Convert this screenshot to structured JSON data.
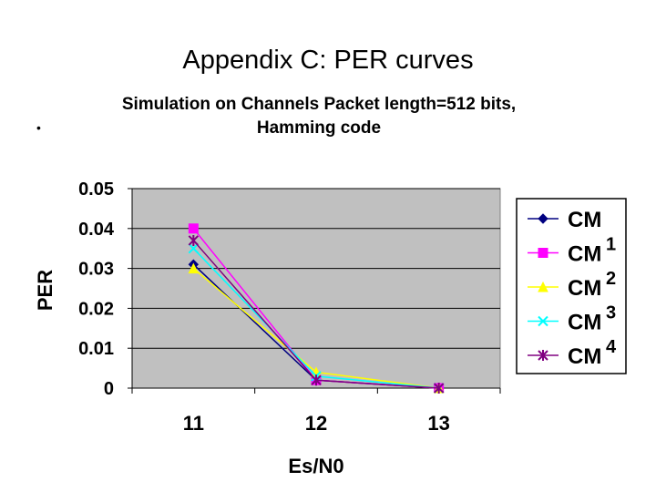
{
  "slide": {
    "title": "Appendix C: PER curves",
    "bullet": "•"
  },
  "colors": {
    "plot_background": "#c0c0c0",
    "gridline": "#000000"
  },
  "chart_data": {
    "type": "line",
    "title": "Simulation on Channels Packet length=512 bits, Hamming code",
    "title_lines": [
      "Simulation on Channels Packet length=512 bits,",
      "Hamming code"
    ],
    "xlabel": "Es/N0",
    "ylabel": "PER",
    "categories": [
      "11",
      "12",
      "13"
    ],
    "yticks": [
      "0",
      "0.01",
      "0.02",
      "0.03",
      "0.04",
      "0.05"
    ],
    "ylim": [
      0,
      0.05
    ],
    "grid": true,
    "legend_position": "right",
    "series": [
      {
        "name": "CM",
        "sup": "",
        "color": "#000080",
        "marker": "diamond",
        "values": [
          0.031,
          0.002,
          0.0
        ]
      },
      {
        "name": "CM",
        "sup": "1",
        "color": "#ff00ff",
        "marker": "square",
        "values": [
          0.04,
          0.002,
          0.0
        ]
      },
      {
        "name": "CM",
        "sup": "2",
        "color": "#ffff00",
        "marker": "triangle",
        "values": [
          0.03,
          0.004,
          0.0
        ]
      },
      {
        "name": "CM",
        "sup": "3",
        "color": "#00ffff",
        "marker": "x",
        "values": [
          0.035,
          0.003,
          0.0
        ]
      },
      {
        "name": "CM",
        "sup": "4",
        "color": "#800080",
        "marker": "star",
        "values": [
          0.037,
          0.002,
          0.0
        ]
      }
    ]
  }
}
